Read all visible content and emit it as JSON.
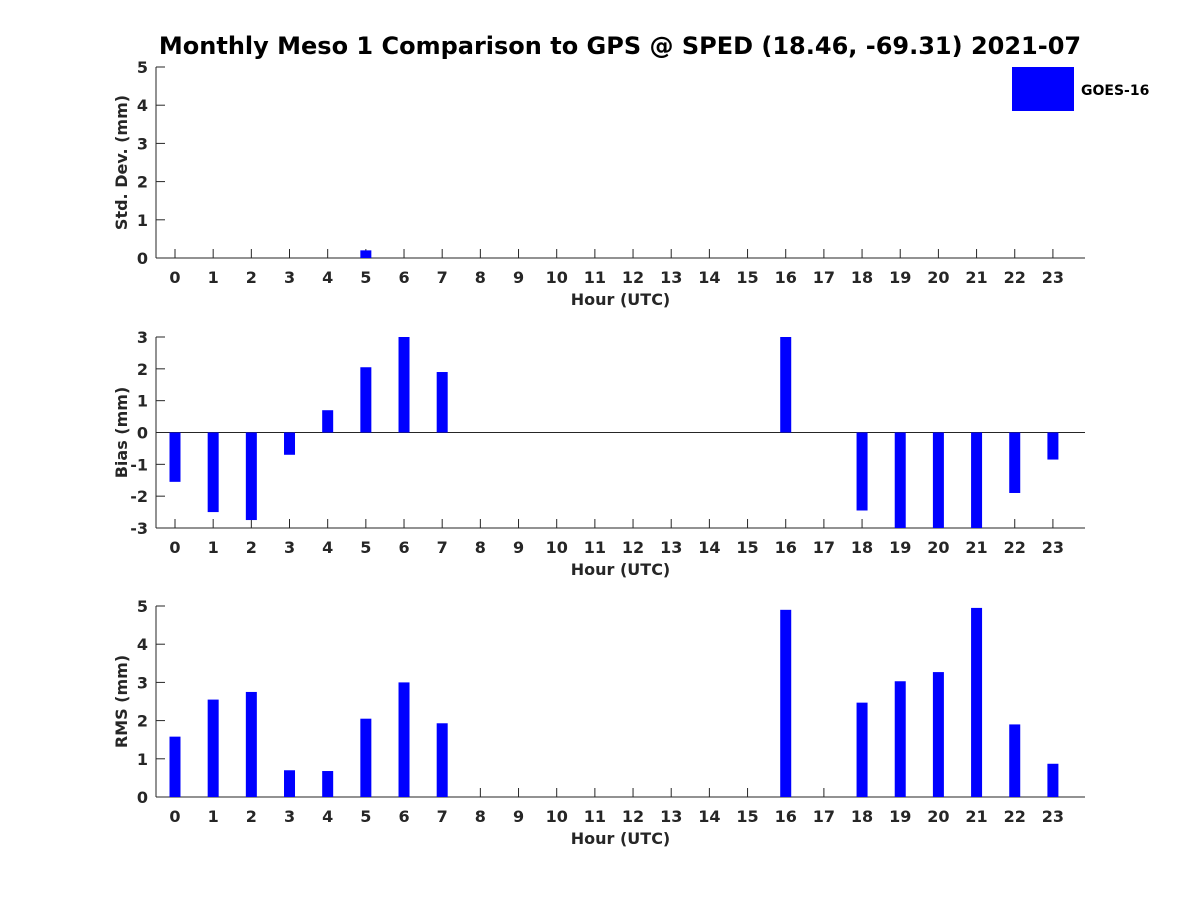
{
  "chart_data": {
    "type": "bar",
    "title": "Monthly Meso 1 Comparison to GPS @ SPED (18.46, -69.31) 2021-07",
    "legend": {
      "placement": "top-right",
      "entries": [
        "GOES-16"
      ]
    },
    "colors": {
      "bar": "#0000ff",
      "axis": "#262626",
      "title": "#000000"
    },
    "panels": [
      {
        "ylabel": "Std. Dev. (mm)",
        "xlabel": "Hour (UTC)",
        "ylim": [
          0,
          5
        ],
        "yticks": [
          0,
          1,
          2,
          3,
          4,
          5
        ],
        "categories": [
          "0",
          "1",
          "2",
          "3",
          "4",
          "5",
          "6",
          "7",
          "8",
          "9",
          "10",
          "11",
          "12",
          "13",
          "14",
          "15",
          "16",
          "17",
          "18",
          "19",
          "20",
          "21",
          "22",
          "23"
        ],
        "series": [
          {
            "values": [
              null,
              null,
              null,
              null,
              null,
              0.2,
              null,
              null,
              null,
              null,
              null,
              null,
              null,
              null,
              null,
              null,
              null,
              null,
              null,
              null,
              null,
              null,
              null,
              null
            ]
          }
        ]
      },
      {
        "ylabel": "Bias (mm)",
        "xlabel": "Hour (UTC)",
        "ylim": [
          -3,
          3
        ],
        "yticks": [
          -3,
          -2,
          -1,
          0,
          1,
          2,
          3
        ],
        "categories": [
          "0",
          "1",
          "2",
          "3",
          "4",
          "5",
          "6",
          "7",
          "8",
          "9",
          "10",
          "11",
          "12",
          "13",
          "14",
          "15",
          "16",
          "17",
          "18",
          "19",
          "20",
          "21",
          "22",
          "23"
        ],
        "series": [
          {
            "values": [
              -1.55,
              -2.5,
              -2.75,
              -0.7,
              0.7,
              2.05,
              3.0,
              1.9,
              null,
              null,
              null,
              null,
              null,
              null,
              null,
              null,
              3.0,
              null,
              -2.45,
              -3.0,
              -3.0,
              -3.0,
              -1.9,
              -0.85
            ]
          }
        ]
      },
      {
        "ylabel": "RMS (mm)",
        "xlabel": "Hour (UTC)",
        "ylim": [
          0,
          5
        ],
        "yticks": [
          0,
          1,
          2,
          3,
          4,
          5
        ],
        "categories": [
          "0",
          "1",
          "2",
          "3",
          "4",
          "5",
          "6",
          "7",
          "8",
          "9",
          "10",
          "11",
          "12",
          "13",
          "14",
          "15",
          "16",
          "17",
          "18",
          "19",
          "20",
          "21",
          "22",
          "23"
        ],
        "series": [
          {
            "values": [
              1.58,
              2.55,
              2.75,
              0.7,
              0.68,
              2.05,
              3.0,
              1.93,
              null,
              null,
              null,
              null,
              null,
              null,
              null,
              null,
              4.9,
              null,
              2.47,
              3.03,
              3.27,
              4.95,
              1.9,
              0.87
            ]
          }
        ]
      }
    ]
  }
}
